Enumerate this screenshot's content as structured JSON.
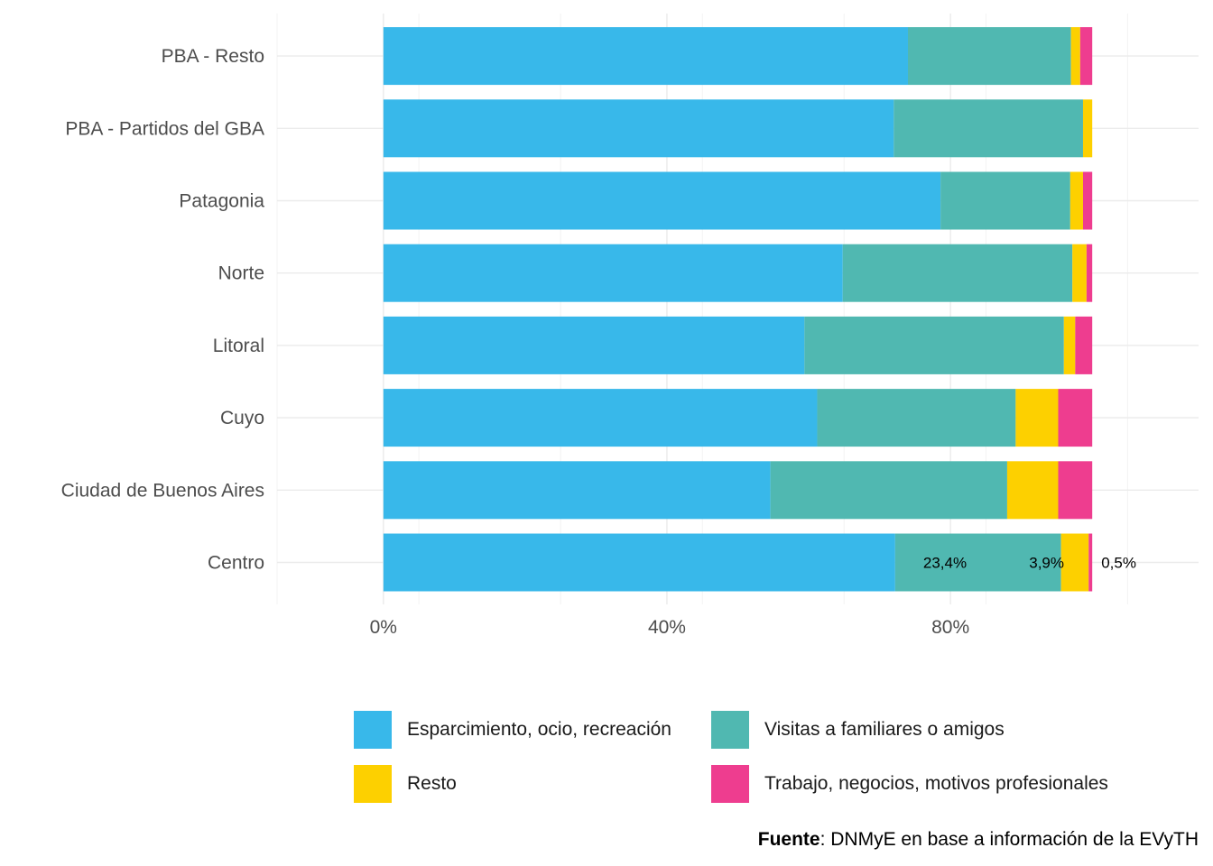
{
  "chart_data": {
    "type": "bar",
    "orientation": "horizontal",
    "stacked": true,
    "categories": [
      "PBA - Resto",
      "PBA - Partidos del GBA",
      "Patagonia",
      "Norte",
      "Litoral",
      "Cuyo",
      "Ciudad de Buenos Aires",
      "Centro"
    ],
    "series": [
      {
        "name": "Esparcimiento, ocio, recreación",
        "color": "#38B8EA",
        "values": [
          74.0,
          72.0,
          78.6,
          64.8,
          59.4,
          61.2,
          54.6,
          72.2
        ]
      },
      {
        "name": "Visitas a familiares o amigos",
        "color": "#50B8B1",
        "values": [
          23.0,
          26.7,
          18.3,
          32.4,
          36.6,
          28.0,
          33.4,
          23.4
        ]
      },
      {
        "name": "Resto",
        "color": "#FDD000",
        "values": [
          1.3,
          1.3,
          1.8,
          2.0,
          1.6,
          6.0,
          7.2,
          3.9
        ]
      },
      {
        "name": "Trabajo, negocios, motivos profesionales",
        "color": "#EE3D8F",
        "values": [
          1.7,
          0.0,
          1.3,
          0.8,
          2.4,
          4.8,
          4.8,
          0.5
        ]
      }
    ],
    "xlim": [
      -15,
      115
    ],
    "x_ticks": [
      0,
      40,
      80
    ],
    "x_tick_labels": [
      "0%",
      "40%",
      "80%"
    ],
    "data_labels": [
      {
        "category": "Centro",
        "series": "Visitas a familiares o amigos",
        "text": "23,4%"
      },
      {
        "category": "Centro",
        "series": "Resto",
        "text": "3,9%"
      },
      {
        "category": "Centro",
        "series": "Trabajo, negocios, motivos profesionales",
        "text": "0,5%"
      }
    ],
    "grid": true,
    "legend_position": "bottom"
  },
  "caption": {
    "bold": "Fuente",
    "text": ": DNMyE en base a información de la EVyTH"
  }
}
